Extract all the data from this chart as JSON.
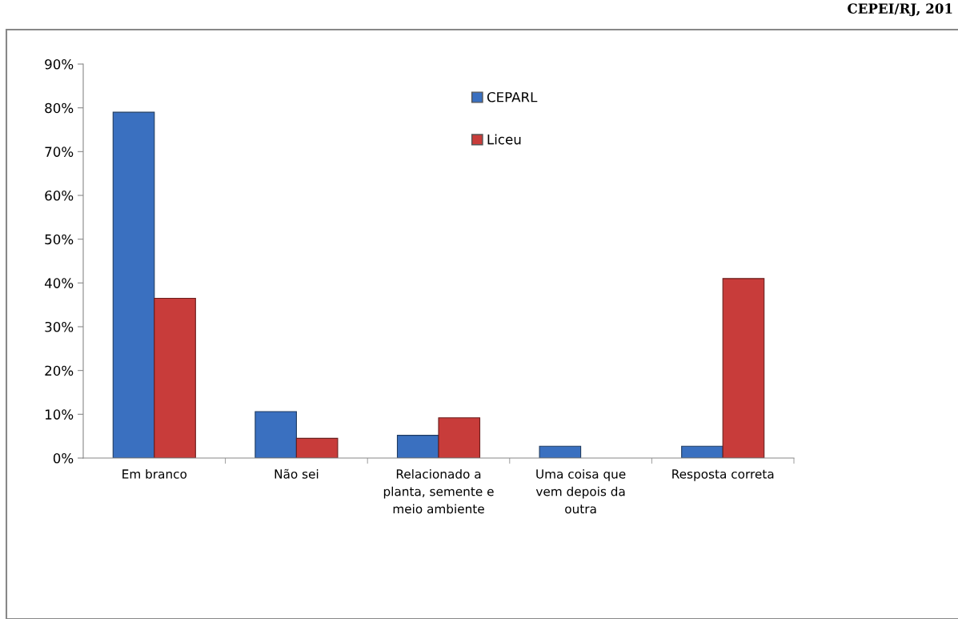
{
  "chart_data": {
    "type": "bar",
    "categories": [
      "Em branco",
      "Não sei",
      "Relacionado a\nplanta, semente e\nmeio ambiente",
      "Uma coisa que\nvem depois da\noutra",
      "Resposta correta"
    ],
    "series": [
      {
        "name": "CEPARL",
        "color": "#3a70c0",
        "values": [
          79,
          10.6,
          5.2,
          2.7,
          2.7
        ]
      },
      {
        "name": "Liceu",
        "color": "#c83c3a",
        "values": [
          36.5,
          4.5,
          9.2,
          null,
          41
        ]
      }
    ],
    "ylim": [
      0,
      90
    ],
    "yticks": [
      {
        "value": 0,
        "label": "0%"
      },
      {
        "value": 10,
        "label": "10%"
      },
      {
        "value": 20,
        "label": "20%"
      },
      {
        "value": 30,
        "label": "30%"
      },
      {
        "value": 40,
        "label": "40%"
      },
      {
        "value": 50,
        "label": "50%"
      },
      {
        "value": 60,
        "label": "60%"
      },
      {
        "value": 70,
        "label": "70%"
      },
      {
        "value": 80,
        "label": "80%"
      },
      {
        "value": 90,
        "label": "90%"
      }
    ],
    "grid": false,
    "legend": "top",
    "annotations": [
      "CEPEI/RJ, 201"
    ]
  }
}
